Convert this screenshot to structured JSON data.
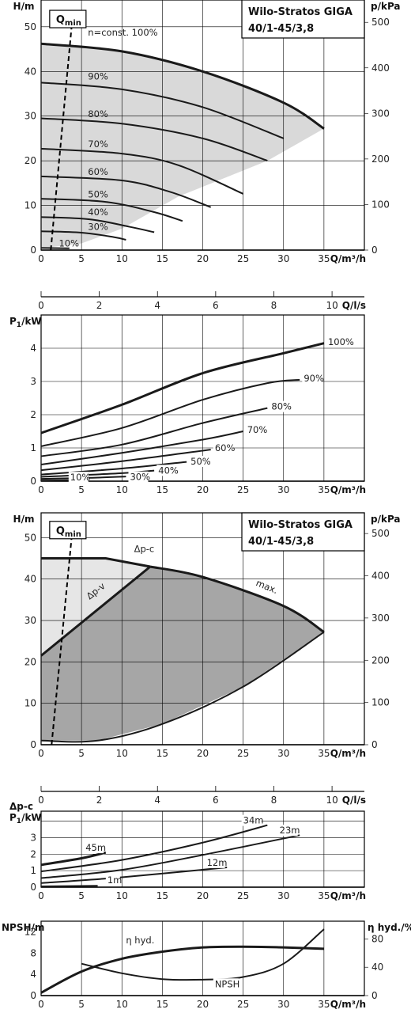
{
  "chart_data": [
    {
      "id": "hq_speed",
      "type": "line",
      "title": "Wilo-Stratos GIGA",
      "subtitle": "40/1-45/3,8",
      "xlabel": "Q/m³/h",
      "ylabel": "H/m",
      "y2label": "p/kPa",
      "x2label": "Q/l/s",
      "xlim": [
        0,
        40
      ],
      "ylim": [
        0,
        56
      ],
      "y2lim": [
        0,
        549
      ],
      "x_ticks": [
        "0",
        "5",
        "10",
        "15",
        "20",
        "25",
        "30",
        "35"
      ],
      "y_ticks": [
        "0",
        "10",
        "20",
        "30",
        "40",
        "50"
      ],
      "y2_ticks": [
        "0",
        "100",
        "200",
        "300",
        "400",
        "500"
      ],
      "x2_ticks": [
        "0",
        "2",
        "4",
        "6",
        "8",
        "10"
      ],
      "qmin_label": "Q",
      "qmin_sub": "min",
      "qmin_line": [
        [
          1.2,
          0
        ],
        [
          3.8,
          50.5
        ]
      ],
      "series": [
        {
          "label": "n=const. 100%",
          "max": true,
          "points": [
            [
              0,
              46.2
            ],
            [
              10,
              44.5
            ],
            [
              20,
              40
            ],
            [
              30,
              33
            ],
            [
              35,
              27.2
            ]
          ]
        },
        {
          "label": "90%",
          "points": [
            [
              0,
              37.5
            ],
            [
              10,
              36
            ],
            [
              20,
              32
            ],
            [
              30,
              25
            ]
          ]
        },
        {
          "label": "80%",
          "points": [
            [
              0,
              29.5
            ],
            [
              10,
              28.3
            ],
            [
              20,
              25
            ],
            [
              28,
              20
            ]
          ]
        },
        {
          "label": "70%",
          "points": [
            [
              0,
              22.7
            ],
            [
              10,
              21.6
            ],
            [
              17,
              19
            ],
            [
              25,
              12.6
            ]
          ]
        },
        {
          "label": "60%",
          "points": [
            [
              0,
              16.5
            ],
            [
              10,
              15.6
            ],
            [
              16,
              13
            ],
            [
              21,
              9.6
            ]
          ]
        },
        {
          "label": "50%",
          "points": [
            [
              0,
              11.5
            ],
            [
              8,
              10.8
            ],
            [
              14,
              8.5
            ],
            [
              17.5,
              6.5
            ]
          ]
        },
        {
          "label": "40%",
          "points": [
            [
              0,
              7.4
            ],
            [
              6,
              6.9
            ],
            [
              11,
              5.2
            ],
            [
              14,
              4
            ]
          ]
        },
        {
          "label": "30%",
          "points": [
            [
              0,
              4.2
            ],
            [
              5,
              3.9
            ],
            [
              9,
              2.9
            ],
            [
              10.5,
              2.3
            ]
          ]
        },
        {
          "label": "10%",
          "points": [
            [
              0,
              0.5
            ],
            [
              3.5,
              0.4
            ]
          ]
        }
      ],
      "label_positions": [
        [
          5.8,
          48
        ],
        [
          5.8,
          38.2
        ],
        [
          5.8,
          29.8
        ],
        [
          5.8,
          23
        ],
        [
          5.8,
          16.8
        ],
        [
          5.8,
          11.8
        ],
        [
          5.8,
          7.8
        ],
        [
          5.8,
          4.5
        ],
        [
          2.2,
          0.8
        ]
      ]
    },
    {
      "id": "p1_speed",
      "type": "line",
      "ylabel": "P",
      "ylabel_sub": "1",
      "ylabel_unit": "/kW",
      "xlabel": "Q/m³/h",
      "xlim": [
        0,
        40
      ],
      "ylim": [
        0,
        5
      ],
      "x_ticks": [
        "0",
        "5",
        "10",
        "15",
        "20",
        "25",
        "30",
        "35"
      ],
      "y_ticks": [
        "0",
        "1",
        "2",
        "3",
        "4"
      ],
      "series": [
        {
          "label": "100%",
          "max": true,
          "points": [
            [
              0,
              1.45
            ],
            [
              10,
              2.3
            ],
            [
              20,
              3.25
            ],
            [
              30,
              3.85
            ],
            [
              35,
              4.15
            ]
          ],
          "lp": [
            35.5,
            4.1
          ]
        },
        {
          "label": "90%",
          "points": [
            [
              0,
              1.05
            ],
            [
              10,
              1.6
            ],
            [
              20,
              2.45
            ],
            [
              28,
              2.95
            ],
            [
              32,
              3.05
            ]
          ],
          "lp": [
            32.5,
            3.0
          ]
        },
        {
          "label": "80%",
          "points": [
            [
              0,
              0.75
            ],
            [
              10,
              1.1
            ],
            [
              20,
              1.75
            ],
            [
              28,
              2.2
            ]
          ],
          "lp": [
            28.5,
            2.15
          ]
        },
        {
          "label": "70%",
          "points": [
            [
              0,
              0.5
            ],
            [
              10,
              0.85
            ],
            [
              20,
              1.25
            ],
            [
              25,
              1.5
            ]
          ],
          "lp": [
            25.5,
            1.45
          ]
        },
        {
          "label": "60%",
          "points": [
            [
              0,
              0.33
            ],
            [
              10,
              0.6
            ],
            [
              21,
              0.95
            ]
          ],
          "lp": [
            21.5,
            0.9
          ]
        },
        {
          "label": "50%",
          "points": [
            [
              0,
              0.2
            ],
            [
              10,
              0.38
            ],
            [
              18,
              0.58
            ]
          ],
          "lp": [
            18.5,
            0.5
          ]
        },
        {
          "label": "40%",
          "points": [
            [
              0,
              0.13
            ],
            [
              10,
              0.24
            ],
            [
              14,
              0.32
            ]
          ],
          "lp": [
            14.5,
            0.23
          ]
        },
        {
          "label": "30%",
          "points": [
            [
              0,
              0.07
            ],
            [
              6,
              0.1
            ],
            [
              10.5,
              0.14
            ]
          ],
          "lp": [
            11,
            0.03
          ]
        },
        {
          "label": "10%",
          "points": [
            [
              0,
              0.02
            ],
            [
              3.5,
              0.03
            ]
          ],
          "lp": [
            3.6,
            0.02
          ]
        }
      ]
    },
    {
      "id": "hq_dp",
      "type": "area",
      "title": "Wilo-Stratos GIGA",
      "subtitle": "40/1-45/3,8",
      "xlabel": "Q/m³/h",
      "ylabel": "H/m",
      "y2label": "p/kPa",
      "x2label": "Q/l/s",
      "xlim": [
        0,
        40
      ],
      "ylim": [
        0,
        56
      ],
      "y2lim": [
        0,
        549
      ],
      "x_ticks": [
        "0",
        "5",
        "10",
        "15",
        "20",
        "25",
        "30",
        "35"
      ],
      "y_ticks": [
        "0",
        "10",
        "20",
        "30",
        "40",
        "50"
      ],
      "y2_ticks": [
        "0",
        "100",
        "200",
        "300",
        "400",
        "500"
      ],
      "x2_ticks": [
        "0",
        "2",
        "4",
        "6",
        "8",
        "10"
      ],
      "qmin_label": "Q",
      "qmin_sub": "min",
      "qmin_line": [
        [
          1.3,
          0
        ],
        [
          3.8,
          50.5
        ]
      ],
      "labels": {
        "dpc": "Δp-c",
        "dpv": "Δp-v",
        "max": "max."
      },
      "dpc_line": [
        [
          0,
          45
        ],
        [
          8,
          45
        ],
        [
          13.5,
          43
        ]
      ],
      "dpv_line": [
        [
          0,
          21.5
        ],
        [
          13.5,
          43
        ]
      ],
      "max_curve": [
        [
          13.5,
          43
        ],
        [
          20,
          40.5
        ],
        [
          30,
          33.5
        ],
        [
          35,
          27.2
        ]
      ],
      "min_curve": [
        [
          0,
          1
        ],
        [
          7,
          1
        ],
        [
          15,
          5
        ],
        [
          25,
          14
        ],
        [
          35,
          27.2
        ]
      ]
    },
    {
      "id": "p1_dp",
      "type": "line",
      "ylabel": "P",
      "ylabel_sub": "1",
      "ylabel_unit": "/kW",
      "ylabel_top": "Δp-c",
      "xlabel": "Q/m³/h",
      "xlim": [
        0,
        40
      ],
      "ylim": [
        0,
        4.6
      ],
      "x_ticks": [
        "0",
        "5",
        "10",
        "15",
        "20",
        "25",
        "30",
        "35"
      ],
      "y_ticks": [
        "0",
        "1",
        "2",
        "3"
      ],
      "series": [
        {
          "label": "45m",
          "max": true,
          "points": [
            [
              0,
              1.35
            ],
            [
              5,
              1.75
            ],
            [
              8,
              2.1
            ]
          ],
          "lp": [
            5.5,
            2.2
          ]
        },
        {
          "label": "34m",
          "points": [
            [
              0,
              0.95
            ],
            [
              10,
              1.65
            ],
            [
              20,
              2.7
            ],
            [
              28,
              3.75
            ]
          ],
          "lp": [
            25,
            3.85
          ]
        },
        {
          "label": "23m",
          "points": [
            [
              0,
              0.55
            ],
            [
              10,
              1.05
            ],
            [
              20,
              1.95
            ],
            [
              32,
              3.15
            ]
          ],
          "lp": [
            29.5,
            3.25
          ]
        },
        {
          "label": "12m",
          "points": [
            [
              0,
              0.25
            ],
            [
              10,
              0.6
            ],
            [
              23,
              1.2
            ]
          ],
          "lp": [
            20.5,
            1.3
          ]
        },
        {
          "label": "1m",
          "points": [
            [
              0,
              0.05
            ],
            [
              7,
              0.08
            ]
          ],
          "lp": [
            8.2,
            0.25
          ]
        }
      ]
    },
    {
      "id": "npsh_eff",
      "type": "line",
      "ylabel": "NPSH/m",
      "y2label": "η hyd./%",
      "xlabel": "Q/m³/h",
      "xlim": [
        0,
        40
      ],
      "ylim": [
        0,
        14
      ],
      "y2lim": [
        0,
        105
      ],
      "x_ticks": [
        "0",
        "5",
        "10",
        "15",
        "20",
        "25",
        "30",
        "35"
      ],
      "y_ticks": [
        "0",
        "4",
        "8",
        "12"
      ],
      "y2_ticks": [
        "0",
        "40",
        "80"
      ],
      "series": [
        {
          "label": "η hyd.",
          "axis": "right",
          "max": true,
          "points": [
            [
              0,
              4
            ],
            [
              5,
              34
            ],
            [
              10,
              52
            ],
            [
              15,
              62
            ],
            [
              20,
              68
            ],
            [
              25,
              69
            ],
            [
              30,
              68
            ],
            [
              35,
              66
            ]
          ],
          "lp": [
            10.5,
            74
          ]
        },
        {
          "label": "NPSH",
          "axis": "left",
          "points": [
            [
              5,
              6
            ],
            [
              10,
              4.2
            ],
            [
              15,
              3.1
            ],
            [
              20,
              3
            ],
            [
              25,
              3.5
            ],
            [
              30,
              6
            ],
            [
              35,
              12.5
            ]
          ],
          "lp": [
            21.5,
            1.6
          ]
        }
      ]
    }
  ]
}
